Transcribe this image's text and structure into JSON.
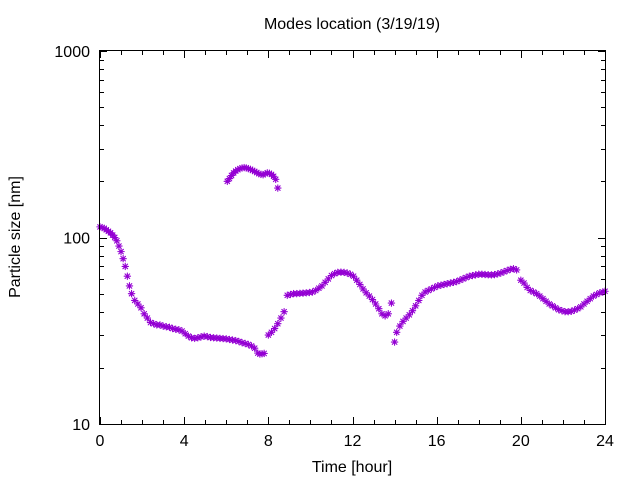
{
  "chart_data": {
    "type": "scatter",
    "title": "Modes location (3/19/19)",
    "xlabel": "Time [hour]",
    "ylabel": "Particle size [nm]",
    "xlim": [
      0,
      24
    ],
    "ylim": [
      10,
      1000
    ],
    "yscale": "log",
    "grid": false,
    "legend": "none",
    "marker": "star",
    "color": "#9400d3",
    "x_ticks": [
      0,
      4,
      8,
      12,
      16,
      20,
      24
    ],
    "x_tick_labels": [
      "0",
      "4",
      "8",
      "12",
      "16",
      "20",
      "24"
    ],
    "y_ticks": [
      10,
      100,
      1000
    ],
    "y_tick_labels": [
      "10",
      "100",
      "1000"
    ],
    "series": [
      {
        "points": [
          [
            0.0,
            114
          ],
          [
            0.1,
            113
          ],
          [
            0.2,
            112
          ],
          [
            0.3,
            110
          ],
          [
            0.4,
            108
          ],
          [
            0.5,
            106
          ],
          [
            0.6,
            103
          ],
          [
            0.7,
            100
          ],
          [
            0.8,
            96
          ],
          [
            0.9,
            90
          ],
          [
            1.0,
            84
          ],
          [
            1.1,
            77
          ],
          [
            1.2,
            70
          ],
          [
            1.3,
            62
          ],
          [
            1.4,
            55
          ],
          [
            1.5,
            50
          ],
          [
            1.65,
            46
          ],
          [
            1.8,
            44
          ],
          [
            1.95,
            42
          ],
          [
            2.1,
            39
          ],
          [
            2.25,
            37
          ],
          [
            2.4,
            35
          ],
          [
            2.55,
            34.5
          ],
          [
            2.7,
            34
          ],
          [
            2.85,
            34
          ],
          [
            3.0,
            33.5
          ],
          [
            3.15,
            33.2
          ],
          [
            3.3,
            33
          ],
          [
            3.45,
            32.5
          ],
          [
            3.6,
            32.2
          ],
          [
            3.75,
            32
          ],
          [
            3.9,
            31.5
          ],
          [
            4.05,
            30.5
          ],
          [
            4.2,
            29.6
          ],
          [
            4.35,
            29
          ],
          [
            4.5,
            28.8
          ],
          [
            4.65,
            29
          ],
          [
            4.8,
            29.3
          ],
          [
            4.95,
            29.6
          ],
          [
            5.1,
            29.4
          ],
          [
            5.25,
            29.1
          ],
          [
            5.4,
            29
          ],
          [
            5.55,
            28.9
          ],
          [
            5.7,
            28.8
          ],
          [
            5.85,
            28.7
          ],
          [
            6.0,
            28.6
          ],
          [
            6.15,
            28.4
          ],
          [
            6.3,
            28.2
          ],
          [
            6.45,
            28
          ],
          [
            6.6,
            27.7
          ],
          [
            6.75,
            27.3
          ],
          [
            6.9,
            27
          ],
          [
            7.05,
            26.7
          ],
          [
            7.2,
            26.2
          ],
          [
            7.35,
            25.5
          ],
          [
            7.5,
            24
          ],
          [
            7.6,
            23.7
          ],
          [
            7.7,
            23.8
          ],
          [
            7.8,
            23.9
          ],
          [
            8.0,
            30
          ],
          [
            8.15,
            31
          ],
          [
            8.3,
            32.5
          ],
          [
            8.45,
            34.5
          ],
          [
            8.6,
            37
          ],
          [
            8.75,
            40
          ],
          [
            8.9,
            49
          ],
          [
            9.05,
            49.5
          ],
          [
            9.2,
            50
          ],
          [
            9.35,
            50
          ],
          [
            9.5,
            50.2
          ],
          [
            9.65,
            50.3
          ],
          [
            9.8,
            50.5
          ],
          [
            9.95,
            50.7
          ],
          [
            10.1,
            51
          ],
          [
            10.25,
            52
          ],
          [
            10.4,
            53.5
          ],
          [
            10.55,
            55
          ],
          [
            10.7,
            57.5
          ],
          [
            10.85,
            60
          ],
          [
            11.0,
            62.5
          ],
          [
            11.15,
            64
          ],
          [
            11.3,
            65
          ],
          [
            11.45,
            65.2
          ],
          [
            11.6,
            65
          ],
          [
            11.75,
            64.5
          ],
          [
            11.9,
            63.5
          ],
          [
            12.05,
            62
          ],
          [
            12.2,
            59
          ],
          [
            12.35,
            56
          ],
          [
            12.5,
            53
          ],
          [
            12.65,
            50.5
          ],
          [
            12.8,
            48.5
          ],
          [
            12.95,
            46.5
          ],
          [
            13.1,
            44
          ],
          [
            13.25,
            41.5
          ],
          [
            13.4,
            39
          ],
          [
            13.55,
            38
          ],
          [
            13.7,
            39
          ],
          [
            13.85,
            44.5
          ],
          [
            14.0,
            27.5
          ],
          [
            14.1,
            31
          ],
          [
            14.25,
            33.5
          ],
          [
            14.4,
            35.5
          ],
          [
            14.55,
            37
          ],
          [
            14.7,
            38.5
          ],
          [
            14.85,
            40.5
          ],
          [
            15.0,
            43
          ],
          [
            15.15,
            46
          ],
          [
            15.3,
            49
          ],
          [
            15.45,
            51
          ],
          [
            15.6,
            52
          ],
          [
            15.75,
            53
          ],
          [
            15.9,
            54
          ],
          [
            16.05,
            55
          ],
          [
            16.2,
            55.5
          ],
          [
            16.35,
            56
          ],
          [
            16.5,
            56.5
          ],
          [
            16.65,
            57
          ],
          [
            16.8,
            57.5
          ],
          [
            16.95,
            58
          ],
          [
            17.1,
            59
          ],
          [
            17.25,
            60
          ],
          [
            17.4,
            61
          ],
          [
            17.55,
            62
          ],
          [
            17.7,
            62.5
          ],
          [
            17.85,
            63
          ],
          [
            18.0,
            63.5
          ],
          [
            18.15,
            63.5
          ],
          [
            18.3,
            63.3
          ],
          [
            18.45,
            63.1
          ],
          [
            18.6,
            63
          ],
          [
            18.75,
            63.2
          ],
          [
            18.9,
            63.8
          ],
          [
            19.05,
            64.5
          ],
          [
            19.2,
            65.5
          ],
          [
            19.35,
            66.5
          ],
          [
            19.5,
            67.5
          ],
          [
            19.65,
            68
          ],
          [
            19.8,
            67
          ],
          [
            20.0,
            59
          ],
          [
            20.15,
            57
          ],
          [
            20.3,
            54
          ],
          [
            20.45,
            52
          ],
          [
            20.6,
            51
          ],
          [
            20.75,
            50
          ],
          [
            20.9,
            48.5
          ],
          [
            21.05,
            47
          ],
          [
            21.2,
            45.5
          ],
          [
            21.35,
            44
          ],
          [
            21.5,
            43
          ],
          [
            21.65,
            42
          ],
          [
            21.8,
            41
          ],
          [
            21.95,
            40.5
          ],
          [
            22.1,
            40
          ],
          [
            22.25,
            40
          ],
          [
            22.4,
            40.2
          ],
          [
            22.55,
            40.8
          ],
          [
            22.7,
            41.5
          ],
          [
            22.85,
            42.5
          ],
          [
            23.0,
            44
          ],
          [
            23.15,
            45.5
          ],
          [
            23.3,
            47
          ],
          [
            23.45,
            48.5
          ],
          [
            23.6,
            49.5
          ],
          [
            23.75,
            50.5
          ],
          [
            23.9,
            51
          ],
          [
            24.0,
            51.5
          ],
          [
            6.05,
            200
          ],
          [
            6.15,
            207
          ],
          [
            6.25,
            215
          ],
          [
            6.35,
            222
          ],
          [
            6.45,
            227
          ],
          [
            6.55,
            231
          ],
          [
            6.65,
            234
          ],
          [
            6.75,
            236
          ],
          [
            6.85,
            237
          ],
          [
            6.95,
            236
          ],
          [
            7.05,
            234
          ],
          [
            7.15,
            232
          ],
          [
            7.25,
            229
          ],
          [
            7.35,
            226
          ],
          [
            7.45,
            223
          ],
          [
            7.55,
            220
          ],
          [
            7.65,
            218
          ],
          [
            7.75,
            217
          ],
          [
            7.85,
            220
          ],
          [
            7.95,
            222
          ],
          [
            8.05,
            221
          ],
          [
            8.15,
            218
          ],
          [
            8.25,
            213
          ],
          [
            8.35,
            205
          ],
          [
            8.45,
            184
          ]
        ]
      }
    ]
  }
}
